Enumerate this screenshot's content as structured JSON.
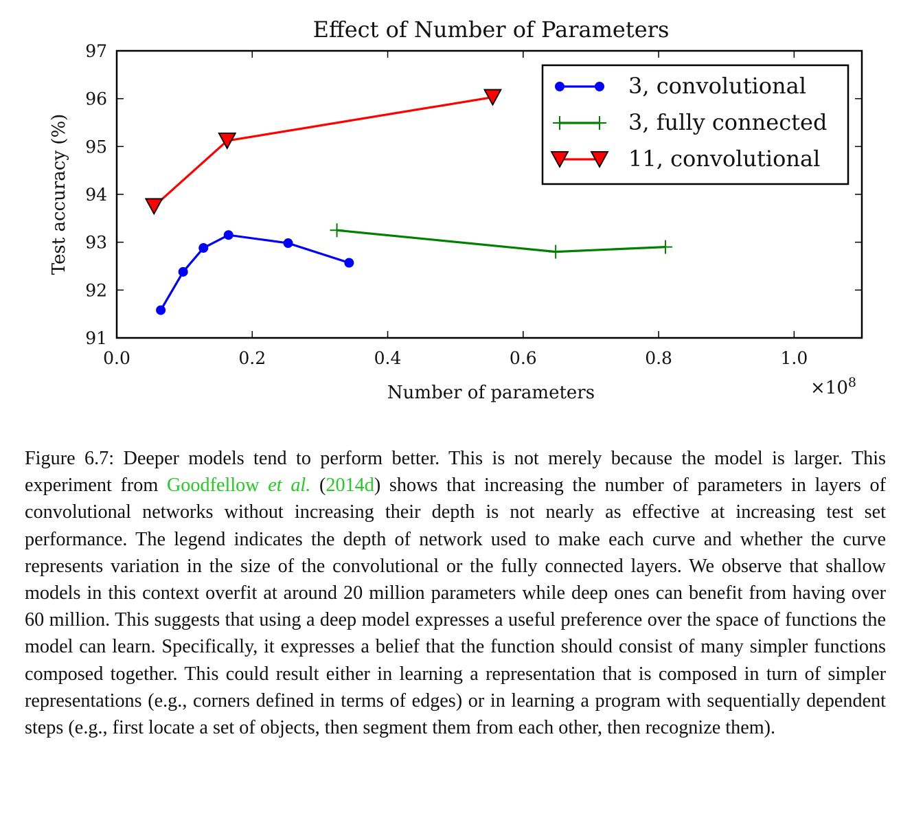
{
  "chart_data": {
    "type": "line",
    "title": "Effect of Number of Parameters",
    "xlabel": "Number of parameters",
    "ylabel": "Test accuracy (%)",
    "x_scale_label": "×10",
    "x_scale_exponent": "8",
    "xlim": [
      0.0,
      1.1
    ],
    "ylim": [
      91,
      97
    ],
    "xticks": [
      "0.0",
      "0.2",
      "0.4",
      "0.6",
      "0.8",
      "1.0"
    ],
    "yticks": [
      "91",
      "92",
      "93",
      "94",
      "95",
      "96",
      "97"
    ],
    "grid": false,
    "legend_position": "top-right",
    "series": [
      {
        "name": "3, convolutional",
        "color": "#0000ff",
        "marker": "circle",
        "x": [
          0.065,
          0.098,
          0.128,
          0.165,
          0.253,
          0.343
        ],
        "y": [
          91.58,
          92.38,
          92.88,
          93.15,
          92.98,
          92.57
        ]
      },
      {
        "name": "3, fully connected",
        "color": "#008000",
        "marker": "plus",
        "x": [
          0.325,
          0.648,
          0.81
        ],
        "y": [
          93.25,
          92.8,
          92.9
        ]
      },
      {
        "name": "11, convolutional",
        "color": "#ff0000",
        "marker": "triangle-down",
        "x": [
          0.055,
          0.163,
          0.555
        ],
        "y": [
          93.75,
          95.12,
          96.03
        ]
      }
    ]
  },
  "caption": {
    "label": "Figure 6.7:",
    "text_1": "Deeper models tend to perform better. This is not merely because the model is larger. This experiment from ",
    "cite_author": "Goodfellow ",
    "cite_etal": "et al.",
    "cite_open": " (",
    "cite_year": "2014d",
    "cite_close": ")",
    "text_2": " shows that increasing the number of parameters in layers of convolutional networks without increasing their depth is not nearly as effective at increasing test set performance. The legend indicates the depth of network used to make each curve and whether the curve represents variation in the size of the convolutional or the fully connected layers. We observe that shallow models in this context overfit at around 20 million parameters while deep ones can benefit from having over 60 million. This suggests that using a deep model expresses a useful preference over the space of functions the model can learn. Specifically, it expresses a belief that the function should consist of many simpler functions composed together. This could result either in learning a representation that is composed in turn of simpler representations (e.g., corners defined in terms of edges) or in learning a program with sequentially dependent steps (e.g., first locate a set of objects, then segment them from each other, then recognize them)."
  }
}
